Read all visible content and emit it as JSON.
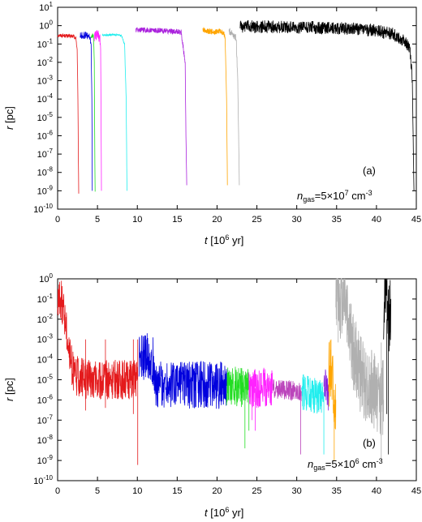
{
  "chart_data": [
    {
      "type": "line",
      "panel_label": "(a)",
      "annotation": {
        "n": "n",
        "sub": "gas",
        "pre": "=5×10",
        "exp": "7",
        "unit": " cm",
        "unit_exp": "-3"
      },
      "xlabel": {
        "var": "t",
        "unit_pre": " [10",
        "unit_exp": "6",
        "unit_post": " yr]"
      },
      "ylabel": {
        "var": "r",
        "unit": " [pc]"
      },
      "xlim": [
        0,
        45
      ],
      "ylim_exp": [
        -10,
        1
      ],
      "yscale": "log",
      "x_ticks": [
        "0",
        "5",
        "10",
        "15",
        "20",
        "25",
        "30",
        "35",
        "40",
        "45"
      ],
      "y_tick_exps": [
        "1",
        "0",
        "-1",
        "-2",
        "-3",
        "-4",
        "-5",
        "-6",
        "-7",
        "-8",
        "-9",
        "-10"
      ],
      "series": [
        {
          "color": "#e41a1c",
          "t": [
            0,
            1.0,
            2.0,
            2.3,
            2.45,
            2.55,
            2.6,
            2.65
          ],
          "r": [
            0.3,
            0.28,
            0.26,
            0.2,
            0.05,
            0.0001,
            1e-07,
            7e-10
          ],
          "osc": 0.1
        },
        {
          "color": "#0000dd",
          "t": [
            2.8,
            3.5,
            4.0,
            4.2,
            4.3,
            4.35
          ],
          "r": [
            0.28,
            0.3,
            0.25,
            0.1,
            0.0001,
            1e-09
          ],
          "osc": 0.2
        },
        {
          "color": "#22dd22",
          "t": [
            4.2,
            4.5,
            4.6,
            4.65,
            4.7
          ],
          "r": [
            0.25,
            0.3,
            0.01,
            1e-06,
            9e-10
          ],
          "osc": 0.1
        },
        {
          "color": "#ff22ff",
          "t": [
            4.6,
            5.0,
            5.3,
            5.4,
            5.45,
            5.5
          ],
          "r": [
            0.28,
            0.3,
            0.22,
            0.05,
            1e-05,
            1e-09
          ],
          "osc": 0.3
        },
        {
          "color": "#22eeee",
          "t": [
            5.6,
            7.0,
            8.0,
            8.4,
            8.6,
            8.7
          ],
          "r": [
            0.3,
            0.32,
            0.3,
            0.1,
            0.0001,
            1e-09
          ],
          "osc": 0.05
        },
        {
          "color": "#aa22dd",
          "t": [
            9.8,
            12.0,
            14.0,
            15.5,
            16.0,
            16.1,
            16.2
          ],
          "r": [
            0.6,
            0.55,
            0.5,
            0.45,
            0.01,
            1e-06,
            2e-09
          ],
          "osc": 0.15
        },
        {
          "color": "#ffa500",
          "t": [
            18.2,
            19.5,
            20.5,
            21.0,
            21.2,
            21.3
          ],
          "r": [
            0.6,
            0.45,
            0.5,
            0.3,
            0.0001,
            2e-09
          ],
          "osc": 0.15
        },
        {
          "color": "#b0b0b0",
          "t": [
            21.5,
            22.0,
            22.4,
            22.6,
            22.8
          ],
          "r": [
            0.5,
            0.35,
            0.2,
            0.001,
            2e-09
          ],
          "osc": 0.2
        },
        {
          "color": "#000000",
          "t": [
            22.9,
            28.0,
            35.0,
            40.0,
            42.0,
            43.5,
            44.2,
            44.5,
            44.7
          ],
          "r": [
            0.9,
            0.85,
            0.75,
            0.55,
            0.35,
            0.15,
            0.05,
            0.001,
            1e-09
          ],
          "osc": 0.35
        }
      ]
    },
    {
      "type": "line",
      "panel_label": "(b)",
      "annotation": {
        "n": "n",
        "sub": "gas",
        "pre": "=5×10",
        "exp": "6",
        "unit": " cm",
        "unit_exp": "-3"
      },
      "xlabel": {
        "var": "t",
        "unit_pre": " [10",
        "unit_exp": "6",
        "unit_post": " yr]"
      },
      "ylabel": {
        "var": "r",
        "unit": " [pc]"
      },
      "xlim": [
        0,
        45
      ],
      "ylim_exp": [
        -10,
        0
      ],
      "yscale": "log",
      "x_ticks": [
        "0",
        "5",
        "10",
        "15",
        "20",
        "25",
        "30",
        "35",
        "40",
        "45"
      ],
      "y_tick_exps": [
        "0",
        "-1",
        "-2",
        "-3",
        "-4",
        "-5",
        "-6",
        "-7",
        "-8",
        "-9",
        "-10"
      ],
      "series": [
        {
          "color": "#e41a1c",
          "t": [
            0,
            0.5,
            1.0,
            1.3,
            1.6,
            2.0,
            3.0,
            5.0,
            8.0,
            10.0
          ],
          "r": [
            0.1,
            0.08,
            0.01,
            0.001,
            0.0001,
            2e-05,
            1.2e-05,
            1e-05,
            1e-05,
            1e-05
          ],
          "osc": 1.0,
          "spikes": [
            [
              3.5,
              3e-07
            ],
            [
              6.0,
              4e-07
            ],
            [
              9.5,
              2e-07
            ],
            [
              10.05,
              6e-10
            ]
          ]
        },
        {
          "color": "#0000dd",
          "t": [
            10.2,
            11.0,
            12.0,
            12.3,
            12.8,
            15.0,
            20.0,
            21.2
          ],
          "r": [
            0.0001,
            0.00015,
            8e-05,
            6e-06,
            6e-06,
            6e-06,
            5e-06,
            5e-06
          ],
          "osc": 1.2,
          "spikes": [
            [
              12.05,
              0.00015
            ],
            [
              20.5,
              1e-06
            ]
          ]
        },
        {
          "color": "#22dd22",
          "t": [
            21.2,
            22.0,
            23.0,
            24.0
          ],
          "r": [
            5e-06,
            5e-06,
            4.5e-06,
            4e-06
          ],
          "osc": 1.0,
          "spikes": [
            [
              23.5,
              4e-09
            ],
            [
              24.0,
              3e-08
            ]
          ]
        },
        {
          "color": "#ff22ff",
          "t": [
            24.0,
            25.0,
            26.0,
            27.0
          ],
          "r": [
            4e-06,
            4e-06,
            4e-06,
            3.5e-06
          ],
          "osc": 1.0,
          "spikes": [
            [
              24.4,
              1e-07
            ],
            [
              24.8,
              3e-08
            ]
          ]
        },
        {
          "color": "#bb44bb",
          "t": [
            27.0,
            28.0,
            29.0,
            30.5,
            30.6
          ],
          "r": [
            3.5e-06,
            3e-06,
            3e-06,
            2.5e-06,
            2.5e-06
          ],
          "osc": 0.5,
          "spikes": [
            [
              30.5,
              2e-09
            ]
          ]
        },
        {
          "color": "#22eeee",
          "t": [
            30.6,
            31.5,
            32.5,
            33.0,
            33.4
          ],
          "r": [
            2.5e-06,
            2e-06,
            1.5e-06,
            1.5e-06,
            1.3e-06
          ],
          "osc": 0.9,
          "spikes": [
            [
              33.4,
              2e-09
            ]
          ]
        },
        {
          "color": "#8822dd",
          "t": [
            33.4,
            33.6,
            33.8,
            34.0
          ],
          "r": [
            5e-06,
            5e-06,
            5e-06,
            5e-06
          ],
          "osc": 1.0,
          "spikes": [
            [
              33.95,
              3e-07
            ]
          ]
        },
        {
          "color": "#ffa500",
          "t": [
            34.0,
            34.3,
            34.6,
            34.9
          ],
          "r": [
            1e-05,
            0.0001,
            1e-05,
            1e-06
          ],
          "osc": 2.0,
          "spikes": [
            [
              34.3,
              0.001
            ],
            [
              34.7,
              1e-09
            ]
          ]
        },
        {
          "color": "#b0b0b0",
          "t": [
            34.9,
            35.5,
            36.0,
            36.5,
            37.0,
            38.0,
            39.0,
            40.0,
            40.9
          ],
          "r": [
            0.5,
            0.1,
            0.3,
            0.01,
            0.0003,
            2e-05,
            5e-06,
            2e-06,
            1e-06
          ],
          "osc": 2.0,
          "spikes": [
            [
              35.2,
              0.4
            ],
            [
              36.3,
              0.5
            ],
            [
              36.8,
              0.05
            ],
            [
              40.6,
              1e-09
            ]
          ]
        },
        {
          "color": "#000000",
          "t": [
            40.9,
            41.0,
            41.2,
            41.4,
            41.6,
            41.8
          ],
          "r": [
            0.001,
            0.3,
            0.4,
            0.1,
            0.01,
            0.1
          ],
          "osc": 2.0,
          "spikes": [
            [
              41.3,
              2e-07
            ],
            [
              41.5,
              2e-09
            ]
          ]
        }
      ]
    }
  ]
}
